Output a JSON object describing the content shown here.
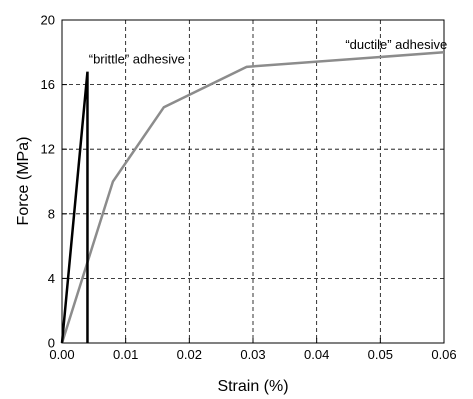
{
  "chart_data": {
    "type": "line",
    "xlabel": "Strain (%)",
    "ylabel": "Force (MPa)",
    "xlim": [
      0,
      0.06
    ],
    "ylim": [
      0,
      20
    ],
    "xticks": [
      "0.00",
      "0.01",
      "0.02",
      "0.03",
      "0.04",
      "0.05",
      "0.06"
    ],
    "yticks": [
      "0",
      "4",
      "8",
      "12",
      "16",
      "20"
    ],
    "xtick_values": [
      0,
      0.01,
      0.02,
      0.03,
      0.04,
      0.05,
      0.06
    ],
    "ytick_values": [
      0,
      4,
      8,
      12,
      16,
      20
    ],
    "grid": true,
    "series": [
      {
        "name": "“brittle” adhesive",
        "color": "#000000",
        "x": [
          0,
          0.004,
          0.004
        ],
        "y": [
          0,
          16.8,
          0
        ]
      },
      {
        "name": "“ductile” adhesive",
        "color": "#8c8c8c",
        "x": [
          0,
          0.008,
          0.016,
          0.029,
          0.06
        ],
        "y": [
          0,
          10,
          14.6,
          17.1,
          18
        ]
      }
    ],
    "annotations": [
      {
        "text": "“brittle” adhesive",
        "x": 0.0042,
        "y": 17.3
      },
      {
        "text": "“ductile” adhesive",
        "x": 0.0445,
        "y": 18.2
      }
    ]
  }
}
